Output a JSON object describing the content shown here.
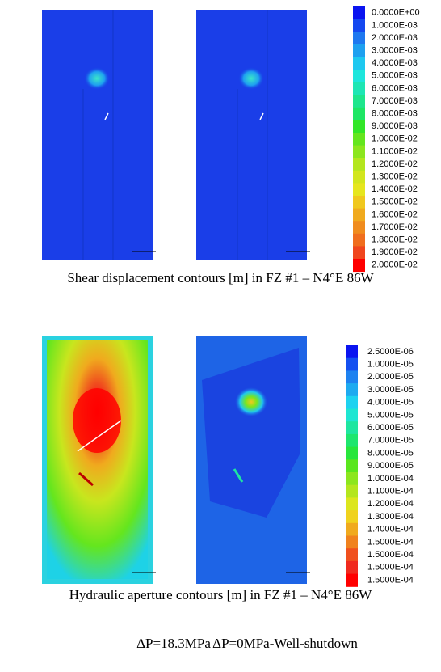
{
  "panels": [
    {
      "legend": [
        {
          "label": "0.0000E+00",
          "color": "#0a14f0"
        },
        {
          "label": "1.0000E-03",
          "color": "#1448f0"
        },
        {
          "label": "2.0000E-03",
          "color": "#1e78f0"
        },
        {
          "label": "3.0000E-03",
          "color": "#1ea0f0"
        },
        {
          "label": "4.0000E-03",
          "color": "#1ec8f0"
        },
        {
          "label": "5.0000E-03",
          "color": "#1ee6dc"
        },
        {
          "label": "6.0000E-03",
          "color": "#1ee6b4"
        },
        {
          "label": "7.0000E-03",
          "color": "#1ee68c"
        },
        {
          "label": "8.0000E-03",
          "color": "#1ee664"
        },
        {
          "label": "9.0000E-03",
          "color": "#32e628"
        },
        {
          "label": "1.0000E-02",
          "color": "#64e61e"
        },
        {
          "label": "1.1000E-02",
          "color": "#8ce61e"
        },
        {
          "label": "1.2000E-02",
          "color": "#b4e61e"
        },
        {
          "label": "1.3000E-02",
          "color": "#d2e61e"
        },
        {
          "label": "1.4000E-02",
          "color": "#e6e61e"
        },
        {
          "label": "1.5000E-02",
          "color": "#f0c81e"
        },
        {
          "label": "1.6000E-02",
          "color": "#f0aa1e"
        },
        {
          "label": "1.7000E-02",
          "color": "#f08c1e"
        },
        {
          "label": "1.8000E-02",
          "color": "#f06e1e"
        },
        {
          "label": "1.9000E-02",
          "color": "#f0461e"
        },
        {
          "label": "2.0000E-02",
          "color": "#ff0000"
        }
      ],
      "caption": "Shear displacement contours [m] in FZ #1 – N4°E 86W"
    },
    {
      "legend": [
        {
          "label": "2.5000E-06",
          "color": "#0a14f0"
        },
        {
          "label": "1.0000E-05",
          "color": "#1450f0"
        },
        {
          "label": "2.0000E-05",
          "color": "#1e82f0"
        },
        {
          "label": "3.0000E-05",
          "color": "#1eaaf0"
        },
        {
          "label": "4.0000E-05",
          "color": "#1ed2f0"
        },
        {
          "label": "5.0000E-05",
          "color": "#1ee6d2"
        },
        {
          "label": "6.0000E-05",
          "color": "#1ee6a0"
        },
        {
          "label": "7.0000E-05",
          "color": "#1ee66e"
        },
        {
          "label": "8.0000E-05",
          "color": "#28e63c"
        },
        {
          "label": "9.0000E-05",
          "color": "#5ae61e"
        },
        {
          "label": "1.0000E-04",
          "color": "#8ce61e"
        },
        {
          "label": "1.1000E-04",
          "color": "#b4e61e"
        },
        {
          "label": "1.2000E-04",
          "color": "#dce61e"
        },
        {
          "label": "1.3000E-04",
          "color": "#f0d21e"
        },
        {
          "label": "1.4000E-04",
          "color": "#f0aa1e"
        },
        {
          "label": "1.5000E-04",
          "color": "#f0821e"
        },
        {
          "label": "1.5000E-04",
          "color": "#f0501e"
        },
        {
          "label": "1.5000E-04",
          "color": "#f02a1e"
        },
        {
          "label": "1.5000E-04",
          "color": "#ff0000"
        }
      ],
      "caption": "Hydraulic aperture contours [m] in FZ #1 – N4°E 86W"
    }
  ],
  "conditions": [
    "ΔP=18.3MPa",
    "ΔP=0MPa-Well-shutdown"
  ]
}
